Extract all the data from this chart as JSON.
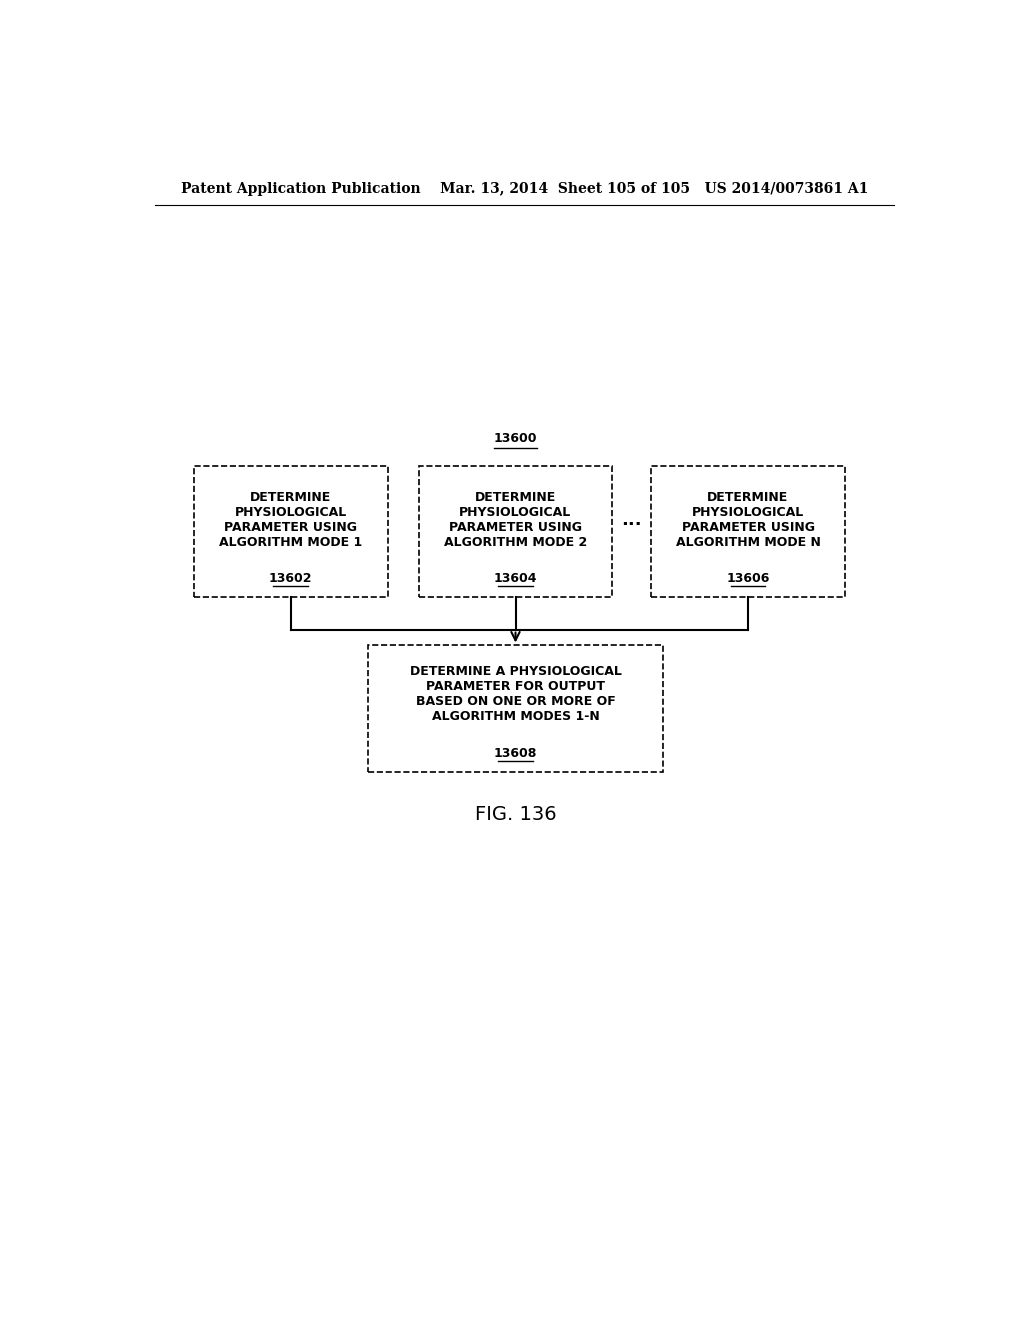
{
  "bg_color": "#ffffff",
  "header_text": "Patent Application Publication    Mar. 13, 2014  Sheet 105 of 105   US 2014/0073861 A1",
  "header_fontsize": 10,
  "label_13600": "13600",
  "box1_label": "DETERMINE\nPHYSIOLOGICAL\nPARAMETER USING\nALGORITHM MODE 1",
  "box1_id": "13602",
  "box2_label": "DETERMINE\nPHYSIOLOGICAL\nPARAMETER USING\nALGORITHM MODE 2",
  "box2_id": "13604",
  "box3_label": "DETERMINE\nPHYSIOLOGICAL\nPARAMETER USING\nALGORITHM MODE N",
  "box3_id": "13606",
  "box4_label": "DETERMINE A PHYSIOLOGICAL\nPARAMETER FOR OUTPUT\nBASED ON ONE OR MORE OF\nALGORITHM MODES 1-N",
  "box4_id": "13608",
  "dots_label": "...",
  "fig_label": "FIG. 136",
  "text_fontsize": 9,
  "id_fontsize": 9,
  "fig_label_fontsize": 14
}
